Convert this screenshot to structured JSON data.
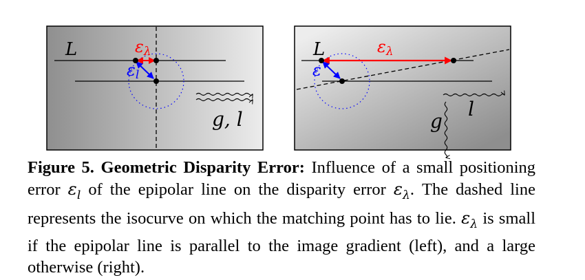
{
  "figure": {
    "left_panel": {
      "label_line": "L",
      "label_eps_lambda": "ε",
      "label_eps_lambda_sub": "λ",
      "label_eps_l": "ε",
      "label_eps_l_sub": "l",
      "label_gl": "g, l"
    },
    "right_panel": {
      "label_line": "L",
      "label_eps_lambda": "ε",
      "label_eps_lambda_sub": "λ",
      "label_eps_l": "ε",
      "label_g": "g",
      "label_l": "l"
    },
    "colors": {
      "red": "#ff0000",
      "blue": "#0000ff"
    }
  },
  "caption": {
    "lead": "Figure 5. Geometric Disparity Error:",
    "t1": " Influence of a small positioning error ",
    "m1": "ε",
    "m1_sub": "l",
    "t2": " of the epipolar line on the disparity error ",
    "m2": "ε",
    "m2_sub": "λ",
    "t3": ". The dashed line represents the isocurve on which the matching point has to lie. ",
    "m3": "ε",
    "m3_sub": "λ",
    "t4": " is small if the epipolar line is parallel to the image gradient (left), and a large otherwise (right)."
  }
}
